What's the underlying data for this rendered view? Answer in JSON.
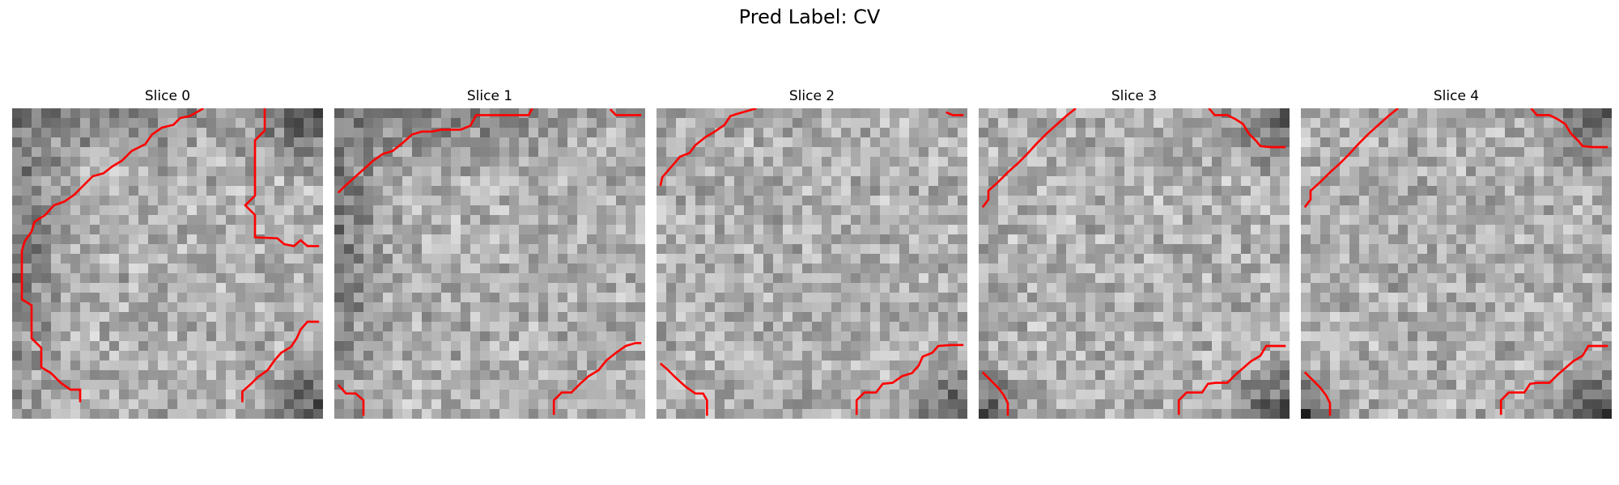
{
  "figure": {
    "title": "Pred Label: CV"
  },
  "slices": [
    {
      "title": "Slice 0",
      "grid_size": 32,
      "seed": 11,
      "dark_regions": [
        "left",
        "top",
        "top-right",
        "bottom-right"
      ],
      "overlay_color": "#ff0000"
    },
    {
      "title": "Slice 1",
      "grid_size": 32,
      "seed": 23,
      "dark_regions": [
        "left",
        "top"
      ],
      "overlay_color": "#ff0000"
    },
    {
      "title": "Slice 2",
      "grid_size": 32,
      "seed": 37,
      "dark_regions": [
        "bottom-right"
      ],
      "overlay_color": "#ff0000"
    },
    {
      "title": "Slice 3",
      "grid_size": 32,
      "seed": 41,
      "dark_regions": [
        "bottom-left",
        "bottom-right",
        "top-right"
      ],
      "overlay_color": "#ff0000"
    },
    {
      "title": "Slice 4",
      "grid_size": 32,
      "seed": 53,
      "dark_regions": [
        "bottom-left",
        "bottom-right",
        "top-right"
      ],
      "overlay_color": "#ff0000"
    }
  ]
}
